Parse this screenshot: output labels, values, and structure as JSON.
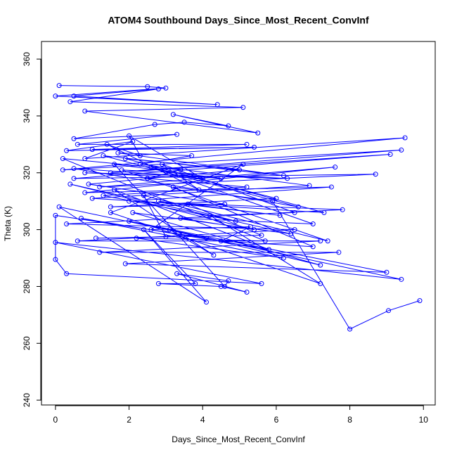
{
  "chart_data": {
    "type": "line",
    "title": "ATOM4 Southbound Days_Since_Most_Recent_ConvInf",
    "x_label": "Days_Since_Most_Recent_ConvInf",
    "y_label": "Theta (K)",
    "xlim": [
      -0.38,
      10.32
    ],
    "ylim": [
      238.3,
      366.2
    ],
    "xticks": [
      0,
      2,
      4,
      6,
      8,
      10
    ],
    "yticks": [
      240,
      260,
      280,
      300,
      320,
      340,
      360
    ],
    "markers": true,
    "series": [
      {
        "color": "#0000ff",
        "x": [
          0.1,
          2.5,
          3.0,
          0.0,
          4.4,
          0.5,
          2.8,
          0.4,
          5.1,
          0.8,
          5.5,
          3.2,
          4.7,
          3.5,
          2.7,
          0.5,
          3.3,
          0.6,
          5.2,
          1.0,
          5.4,
          0.3,
          2.1,
          0.8,
          9.5,
          0.2,
          9.4,
          1.5,
          9.1,
          0.5,
          8.7,
          1.2,
          7.6,
          0.8,
          7.5,
          2.0,
          7.8,
          0.3,
          6.5,
          0.6,
          7.2,
          1.2,
          7.7,
          1.9,
          9.0,
          2.0,
          9.4,
          0.0,
          5.6,
          0.3,
          0.0,
          0.0,
          4.1,
          0.1,
          4.1,
          2.4,
          3.8,
          2.8,
          4.5,
          5.2,
          3.3,
          4.7,
          4.6,
          1.6,
          4.5,
          0.5,
          6.6,
          1.3,
          6.2,
          1.7,
          3.7,
          2.3,
          6.9,
          1.0,
          7.3,
          1.9,
          5.0,
          0.9,
          4.6,
          1.5,
          6.0,
          2.6,
          7.0,
          3.4,
          5.4,
          0.4,
          6.4,
          2.1,
          7.2,
          3.1,
          4.3,
          1.6,
          5.8,
          0.7,
          6.2,
          2.2,
          5.7,
          0.2,
          3.4,
          2.5,
          5.2,
          1.3,
          4.9,
          2.8,
          6.1,
          3.6,
          5.6,
          1.1,
          3.0,
          2.4,
          7.4,
          1.8,
          6.3,
          0.8,
          4.0,
          2.0,
          2.3,
          1.4,
          3.9,
          2.9,
          6.5,
          4.2,
          7.2,
          1.5,
          5.1,
          2.6,
          5.3,
          4.5,
          7.0,
          3.2,
          5.9,
          8.0,
          9.05,
          9.9
        ],
        "values": [
          350.7,
          350.3,
          349.8,
          347,
          344,
          347,
          349.5,
          345,
          343,
          341.7,
          334,
          340.5,
          336.5,
          337.8,
          337,
          332,
          333.5,
          330,
          330,
          328.2,
          329,
          327.8,
          331,
          325,
          332.3,
          321,
          328,
          320,
          326.5,
          318,
          319.5,
          315,
          322,
          313,
          315,
          310,
          307,
          302,
          300,
          296,
          296,
          292,
          292,
          288,
          285,
          303,
          282.5,
          295.5,
          281,
          284.5,
          289.5,
          305,
          297,
          308,
          274.5,
          300,
          281,
          281,
          280,
          278,
          284.5,
          282,
          280,
          323,
          318,
          321.5,
          308,
          326,
          319,
          327,
          326,
          323,
          315.5,
          311,
          306,
          325,
          321,
          316,
          309,
          308,
          311,
          322,
          302,
          304,
          300,
          316,
          298.5,
          306,
          287.5,
          300,
          291,
          314,
          293,
          304,
          290,
          297,
          296,
          325,
          321,
          318,
          315,
          312,
          303,
          310,
          305,
          309,
          298,
          297,
          297.5,
          312,
          296,
          321,
          318,
          320,
          318,
          333,
          326,
          330,
          314,
          323,
          306,
          305,
          281,
          306,
          323,
          300,
          301,
          296,
          294,
          315,
          310,
          265,
          271.5,
          275
        ]
      }
    ]
  }
}
